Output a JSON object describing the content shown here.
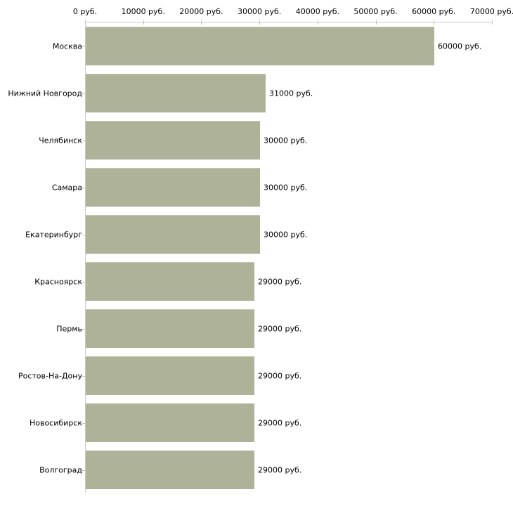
{
  "chart_data": {
    "type": "bar",
    "orientation": "horizontal",
    "title": "",
    "unit": "руб.",
    "categories": [
      "Москва",
      "Нижний Новгород",
      "Челябинск",
      "Самара",
      "Екатеринбург",
      "Красноярск",
      "Пермь",
      "Ростов-На-Дону",
      "Новосибирск",
      "Волгоград"
    ],
    "values": [
      60000,
      31000,
      30000,
      30000,
      30000,
      29000,
      29000,
      29000,
      29000,
      29000
    ],
    "value_labels": [
      "60000 руб.",
      "31000 руб.",
      "30000 руб.",
      "30000 руб.",
      "30000 руб.",
      "29000 руб.",
      "29000 руб.",
      "29000 руб.",
      "29000 руб.",
      "29000 руб."
    ],
    "x_axis": {
      "position": "top",
      "min": 0,
      "max": 70000,
      "tick_values": [
        0,
        10000,
        20000,
        30000,
        40000,
        50000,
        60000,
        70000
      ],
      "tick_labels": [
        "0 руб.",
        "10000 руб.",
        "20000 руб.",
        "30000 руб.",
        "40000 руб.",
        "50000 руб.",
        "60000 руб.",
        "70000 руб."
      ]
    },
    "grid": false,
    "legend": "none",
    "colors": {
      "bar": "#aeb299",
      "bar_highlight": "#c2c5ad",
      "axis_line": "#c9c9c9",
      "tick": "#c5c4a0",
      "text": "#000000",
      "background": "#ffffff"
    }
  }
}
